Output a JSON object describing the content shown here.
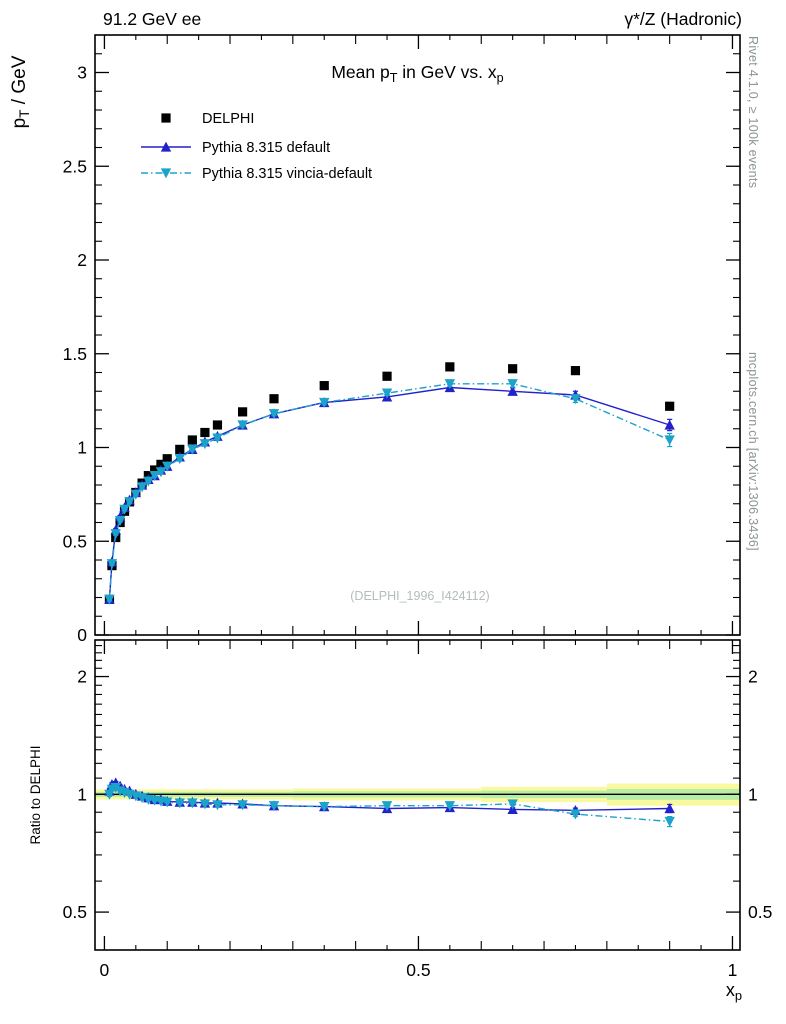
{
  "header": {
    "left": "91.2 GeV ee",
    "right": "γ*/Z (Hadronic)"
  },
  "side_labels": {
    "rivet": "Rivet 4.1.0, ≥ 100k events",
    "mcplots": "mcplots.cern.ch [arXiv:1306.3436]"
  },
  "watermark": "(DELPHI_1996_I424112)",
  "colors": {
    "delphi": "#000000",
    "pythia_default": "#2222cc",
    "pythia_vincia": "#1ba3c9",
    "band_outer": "#f9f9a0",
    "band_inner": "#b9eca4"
  },
  "chart_data": [
    {
      "id": "main",
      "type": "line",
      "title": "Mean p_[T] in GeV vs. x_[p]",
      "ylabel": "p_[T] / GeV",
      "xlabel": "x_[p]",
      "xlim": [
        -0.015,
        1.012
      ],
      "ylim": [
        0,
        3.2
      ],
      "grid": false,
      "legend_position": "top-left",
      "xticks": {
        "values": [
          0,
          0.5,
          1
        ],
        "labels": [
          "0",
          "0.5",
          "1"
        ]
      },
      "yticks": {
        "values": [
          0,
          0.5,
          1,
          1.5,
          2,
          2.5,
          3
        ],
        "labels": [
          "0",
          "0.5",
          "1",
          "1.5",
          "2",
          "2.5",
          "3"
        ]
      },
      "x": [
        0.008,
        0.012,
        0.018,
        0.025,
        0.032,
        0.04,
        0.05,
        0.06,
        0.07,
        0.08,
        0.09,
        0.1,
        0.12,
        0.14,
        0.16,
        0.18,
        0.22,
        0.27,
        0.35,
        0.45,
        0.55,
        0.65,
        0.75,
        0.9
      ],
      "series": [
        {
          "name": "DELPHI",
          "color": "#000000",
          "marker": "square",
          "line": "none",
          "values": [
            0.19,
            0.37,
            0.52,
            0.6,
            0.66,
            0.71,
            0.76,
            0.81,
            0.85,
            0.88,
            0.91,
            0.94,
            0.99,
            1.04,
            1.08,
            1.12,
            1.19,
            1.26,
            1.33,
            1.38,
            1.43,
            1.42,
            1.41,
            1.22
          ]
        },
        {
          "name": "Pythia 8.315 default",
          "color": "#2222cc",
          "marker": "triangle-up",
          "line": "solid",
          "values": [
            0.19,
            0.39,
            0.56,
            0.63,
            0.68,
            0.72,
            0.76,
            0.8,
            0.83,
            0.85,
            0.88,
            0.9,
            0.95,
            0.99,
            1.03,
            1.06,
            1.12,
            1.18,
            1.24,
            1.27,
            1.32,
            1.3,
            1.28,
            1.12
          ],
          "yerr": [
            0.008,
            0.008,
            0.008,
            0.008,
            0.008,
            0.008,
            0.008,
            0.008,
            0.008,
            0.008,
            0.008,
            0.008,
            0.008,
            0.008,
            0.008,
            0.008,
            0.01,
            0.01,
            0.012,
            0.012,
            0.015,
            0.018,
            0.02,
            0.03
          ]
        },
        {
          "name": "Pythia 8.315 vincia-default",
          "color": "#1ba3c9",
          "marker": "triangle-down",
          "line": "dashdot",
          "values": [
            0.19,
            0.38,
            0.54,
            0.61,
            0.67,
            0.71,
            0.75,
            0.79,
            0.82,
            0.85,
            0.87,
            0.9,
            0.94,
            0.99,
            1.02,
            1.05,
            1.12,
            1.18,
            1.24,
            1.29,
            1.34,
            1.34,
            1.26,
            1.04
          ],
          "yerr": [
            0.008,
            0.008,
            0.008,
            0.008,
            0.008,
            0.008,
            0.008,
            0.008,
            0.008,
            0.008,
            0.008,
            0.008,
            0.008,
            0.008,
            0.008,
            0.008,
            0.01,
            0.01,
            0.012,
            0.012,
            0.015,
            0.018,
            0.02,
            0.035
          ]
        }
      ]
    },
    {
      "id": "ratio",
      "type": "line",
      "ylabel": "Ratio to DELPHI",
      "yscale": "log",
      "ylim": [
        0.4,
        2.48
      ],
      "yticks": {
        "values": [
          0.5,
          1,
          2
        ],
        "labels": [
          "0.5",
          "1",
          "2"
        ]
      },
      "reference_line": 1.0,
      "band": {
        "outer_color": "#f9f9a0",
        "inner_color": "#b9eca4",
        "segments": [
          {
            "x0": -0.015,
            "x1": 0.3,
            "outer": 0.03,
            "inner": 0.015
          },
          {
            "x0": 0.3,
            "x1": 0.6,
            "outer": 0.035,
            "inner": 0.018
          },
          {
            "x0": 0.6,
            "x1": 0.8,
            "outer": 0.045,
            "inner": 0.022
          },
          {
            "x0": 0.8,
            "x1": 1.012,
            "outer": 0.065,
            "inner": 0.032
          }
        ]
      },
      "x": [
        0.008,
        0.012,
        0.018,
        0.025,
        0.032,
        0.04,
        0.05,
        0.06,
        0.07,
        0.08,
        0.09,
        0.1,
        0.12,
        0.14,
        0.16,
        0.18,
        0.22,
        0.27,
        0.35,
        0.45,
        0.55,
        0.65,
        0.75,
        0.9
      ],
      "series": [
        {
          "name": "Pythia 8.315 default",
          "color": "#2222cc",
          "marker": "triangle-up",
          "line": "solid",
          "values": [
            1.02,
            1.06,
            1.07,
            1.05,
            1.03,
            1.02,
            1.0,
            0.99,
            0.98,
            0.97,
            0.97,
            0.96,
            0.955,
            0.955,
            0.95,
            0.95,
            0.945,
            0.935,
            0.93,
            0.92,
            0.925,
            0.915,
            0.91,
            0.92
          ],
          "yerr": [
            0.012,
            0.01,
            0.008,
            0.007,
            0.006,
            0.006,
            0.005,
            0.005,
            0.005,
            0.005,
            0.005,
            0.005,
            0.005,
            0.005,
            0.006,
            0.006,
            0.006,
            0.007,
            0.007,
            0.008,
            0.008,
            0.009,
            0.012,
            0.022
          ]
        },
        {
          "name": "Pythia 8.315 vincia-default",
          "color": "#1ba3c9",
          "marker": "triangle-down",
          "line": "dashdot",
          "values": [
            1.0,
            1.03,
            1.04,
            1.02,
            1.01,
            1.0,
            0.99,
            0.98,
            0.97,
            0.965,
            0.96,
            0.955,
            0.95,
            0.95,
            0.945,
            0.94,
            0.94,
            0.935,
            0.93,
            0.935,
            0.935,
            0.945,
            0.89,
            0.852
          ],
          "yerr": [
            0.012,
            0.01,
            0.008,
            0.007,
            0.006,
            0.006,
            0.005,
            0.005,
            0.005,
            0.005,
            0.005,
            0.005,
            0.005,
            0.005,
            0.006,
            0.006,
            0.006,
            0.007,
            0.007,
            0.008,
            0.008,
            0.009,
            0.012,
            0.025
          ]
        }
      ]
    }
  ]
}
